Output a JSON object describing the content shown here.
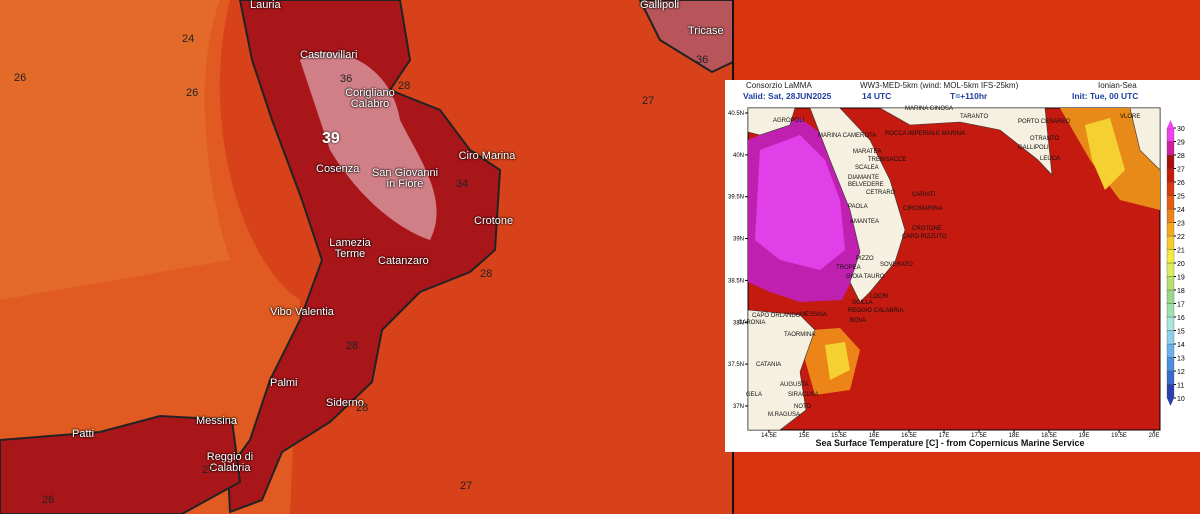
{
  "left_map": {
    "places": [
      "Lauria",
      "Gallipoli",
      "Castrovillari",
      "Tricase",
      "Corigliano Calabro",
      "Ciro Marina",
      "San Giovanni in Fiore",
      "Cosenza",
      "Crotone",
      "Lamezia Terme",
      "Catanzaro",
      "Vibo Valentia",
      "Palmi",
      "Siderno",
      "Messina",
      "Patti",
      "Reggio di Calabria"
    ],
    "contour_labels": [
      24,
      26,
      26,
      36,
      28,
      39,
      34,
      27,
      36,
      28,
      28,
      28,
      27,
      26,
      27
    ]
  },
  "right_map": {
    "header": {
      "source": "Consorzio LaMMA",
      "model": "WW3-MED-5km (wind: MOL-5km IFS-25km)",
      "region": "Ionian-Sea",
      "valid": "Valid: Sat, 28JUN2025",
      "hour": "14 UTC",
      "lead": "T=+110hr",
      "init": "Init: Tue, 00 UTC"
    },
    "footer": "Sea Surface Temperature [C] - from Copernicus Marine Service",
    "lat_ticks": [
      {
        "value": 40.5,
        "label": "40.5N"
      },
      {
        "value": 40,
        "label": "40N"
      },
      {
        "value": 39.5,
        "label": "39.5N"
      },
      {
        "value": 39,
        "label": "39N"
      },
      {
        "value": 38.5,
        "label": "38.5N"
      },
      {
        "value": 38,
        "label": "38N"
      },
      {
        "value": 37.5,
        "label": "37.5N"
      },
      {
        "value": 37,
        "label": "37N"
      }
    ],
    "lon_ticks": [
      {
        "value": 14.5,
        "label": "14.5E"
      },
      {
        "value": 15,
        "label": "15E"
      },
      {
        "value": 15.5,
        "label": "15.5E"
      },
      {
        "value": 16,
        "label": "16E"
      },
      {
        "value": 16.5,
        "label": "16.5E"
      },
      {
        "value": 17,
        "label": "17E"
      },
      {
        "value": 17.5,
        "label": "17.5E"
      },
      {
        "value": 18,
        "label": "18E"
      },
      {
        "value": 18.5,
        "label": "18.5E"
      },
      {
        "value": 19,
        "label": "19E"
      },
      {
        "value": 19.5,
        "label": "19.5E"
      },
      {
        "value": 20,
        "label": "20E"
      }
    ],
    "places": [
      "AGROPOLI",
      "MARINA GINOSA",
      "TARANTO",
      "PORTO CESAREO",
      "VLORE",
      "MARINA CAMEROTA",
      "ROCCA IMPERIALE MARINA",
      "OTRANTO",
      "GALLIPOLI",
      "LEUCA",
      "MARATEA",
      "TREBISACCE",
      "SCALEA",
      "DIAMANTE",
      "BELVEDERE",
      "CETRARO",
      "PAOLA",
      "CARIATI",
      "CIRO'MARINA",
      "AMANTEA",
      "CROTONE",
      "CAPO RIZZUTO",
      "PIZZO",
      "SOVERATO",
      "TROPEA",
      "GIOIA TAURO",
      "LOCRI",
      "SCILLA",
      "REGGIO CALABRIA",
      "BOVA",
      "CAPO ORLANDO",
      "MESSINA",
      "CARONIA",
      "TAORMINA",
      "CATANIA",
      "AUGUSTA",
      "SIRACUSA",
      "NOTO",
      "GELA",
      "M.RAGUSA"
    ],
    "colorbar": {
      "ticks": [
        10,
        11,
        12,
        13,
        14,
        15,
        16,
        17,
        18,
        19,
        20,
        21,
        22,
        23,
        24,
        25,
        26,
        27,
        28,
        29,
        30
      ],
      "colors": [
        "#2a3fb0",
        "#3a6ad0",
        "#4a8ee0",
        "#6ab0ea",
        "#8cd0f0",
        "#a8e6e0",
        "#9ee0b0",
        "#9ad88a",
        "#b8e070",
        "#dcec60",
        "#f4ea40",
        "#f8cc30",
        "#f4a820",
        "#ec8418",
        "#e45c14",
        "#d83a10",
        "#c41a0c",
        "#a8100c",
        "#d020a0",
        "#f040f0"
      ]
    }
  }
}
